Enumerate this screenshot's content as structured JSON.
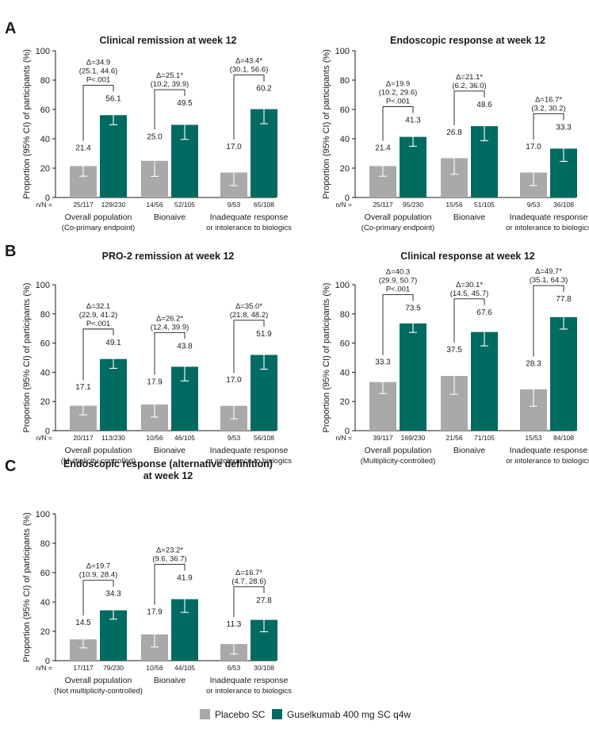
{
  "colors": {
    "placebo": "#aaa9a9",
    "guselkumab": "#006b61"
  },
  "legend": [
    {
      "label": "Placebo SC",
      "color_key": "placebo"
    },
    {
      "label": "Guselkumab 400 mg SC q4w",
      "color_key": "guselkumab"
    }
  ],
  "chart_data": [
    {
      "type": "bar",
      "panel": "A",
      "title": [
        "Clinical remission at week 12"
      ],
      "ylabel": "Proportion (95% CI) of participants (%)",
      "ylim": [
        0,
        100
      ],
      "yticks": [
        0,
        20,
        40,
        60,
        80,
        100
      ],
      "n_prefix": "n/N =",
      "groups": [
        {
          "label": [
            "Overall population",
            "(Co-primary endpoint)"
          ],
          "bars": [
            {
              "series": "placebo",
              "value": 21.4,
              "ci": [
                14.5,
                28.9
              ],
              "n": "25/117"
            },
            {
              "series": "guselkumab",
              "value": 56.1,
              "ci": [
                49.6,
                62.4
              ],
              "n": "129/230"
            }
          ],
          "annotation": [
            "Δ=34.9",
            "(25.1, 44.6)",
            "P<.001"
          ]
        },
        {
          "label": [
            "Bionaive"
          ],
          "bars": [
            {
              "series": "placebo",
              "value": 25.0,
              "ci": [
                14.4,
                36.6
              ],
              "n": "14/56"
            },
            {
              "series": "guselkumab",
              "value": 49.5,
              "ci": [
                39.6,
                59.4
              ],
              "n": "52/105"
            }
          ],
          "annotation": [
            "Δ=25.1*",
            "(10.2, 39.9)"
          ]
        },
        {
          "label": [
            "Inadequate response",
            "or intolerance to biologics"
          ],
          "bars": [
            {
              "series": "placebo",
              "value": 17.0,
              "ci": [
                8.1,
                29.8
              ],
              "n": "9/53"
            },
            {
              "series": "guselkumab",
              "value": 60.2,
              "ci": [
                50.3,
                69.4
              ],
              "n": "65/108"
            }
          ],
          "annotation": [
            "Δ=43.4*",
            "(30.1, 56.6)"
          ]
        }
      ]
    },
    {
      "type": "bar",
      "panel": "",
      "title": [
        "Endoscopic response at week 12"
      ],
      "ylabel": "Proportion (95% CI) of participants (%)",
      "ylim": [
        0,
        100
      ],
      "yticks": [
        0,
        20,
        40,
        60,
        80,
        100
      ],
      "n_prefix": "n/N =",
      "groups": [
        {
          "label": [
            "Overall population",
            "(Co-primary endpoint)"
          ],
          "bars": [
            {
              "series": "placebo",
              "value": 21.4,
              "ci": [
                14.5,
                28.9
              ],
              "n": "25/117"
            },
            {
              "series": "guselkumab",
              "value": 41.3,
              "ci": [
                34.9,
                47.9
              ],
              "n": "95/230"
            }
          ],
          "annotation": [
            "Δ=19.9",
            "(10.2, 29.6)",
            "P<.001"
          ]
        },
        {
          "label": [
            "Bionaive"
          ],
          "bars": [
            {
              "series": "placebo",
              "value": 26.8,
              "ci": [
                15.8,
                39.4
              ],
              "n": "15/56"
            },
            {
              "series": "guselkumab",
              "value": 48.6,
              "ci": [
                38.7,
                58.5
              ],
              "n": "51/105"
            }
          ],
          "annotation": [
            "Δ=21.1*",
            "(6.2, 36.0)"
          ]
        },
        {
          "label": [
            "Inadequate response",
            "or intolerance to biologics"
          ],
          "bars": [
            {
              "series": "placebo",
              "value": 17.0,
              "ci": [
                8.1,
                29.8
              ],
              "n": "9/53"
            },
            {
              "series": "guselkumab",
              "value": 33.3,
              "ci": [
                24.6,
                43.0
              ],
              "n": "36/108"
            }
          ],
          "annotation": [
            "Δ=16.7*",
            "(3.2, 30.2)"
          ]
        }
      ]
    },
    {
      "type": "bar",
      "panel": "B",
      "title": [
        "PRO-2 remission at week 12"
      ],
      "ylabel": "Proportion (95% CI) of participants (%)",
      "ylim": [
        0,
        100
      ],
      "yticks": [
        0,
        20,
        40,
        60,
        80,
        100
      ],
      "n_prefix": "n/N =",
      "groups": [
        {
          "label": [
            "Overall population",
            "(Multiplicity-controlled)"
          ],
          "bars": [
            {
              "series": "placebo",
              "value": 17.1,
              "ci": [
                10.8,
                24.9
              ],
              "n": "20/117"
            },
            {
              "series": "guselkumab",
              "value": 49.1,
              "ci": [
                42.7,
                55.5
              ],
              "n": "113/230"
            }
          ],
          "annotation": [
            "Δ=32.1",
            "(22.9, 41.2)",
            "P<.001"
          ]
        },
        {
          "label": [
            "Bionaive"
          ],
          "bars": [
            {
              "series": "placebo",
              "value": 17.9,
              "ci": [
                9.3,
                28.4
              ],
              "n": "10/56"
            },
            {
              "series": "guselkumab",
              "value": 43.8,
              "ci": [
                34.1,
                53.1
              ],
              "n": "46/105"
            }
          ],
          "annotation": [
            "Δ=26.2*",
            "(12.4, 39.9)"
          ]
        },
        {
          "label": [
            "Inadequate response",
            "or intolerance to biologics"
          ],
          "bars": [
            {
              "series": "placebo",
              "value": 17.0,
              "ci": [
                8.1,
                29.8
              ],
              "n": "9/53"
            },
            {
              "series": "guselkumab",
              "value": 51.9,
              "ci": [
                42.1,
                61.5
              ],
              "n": "56/108"
            }
          ],
          "annotation": [
            "Δ=35.0*",
            "(21.8, 48.2)"
          ]
        }
      ]
    },
    {
      "type": "bar",
      "panel": "",
      "title": [
        "Clinical response at week 12"
      ],
      "ylabel": "Proportion (95% CI) of participants (%)",
      "ylim": [
        0,
        100
      ],
      "yticks": [
        0,
        20,
        40,
        60,
        80,
        100
      ],
      "n_prefix": "n/N =",
      "groups": [
        {
          "label": [
            "Overall population",
            "(Multiplicity-controlled)"
          ],
          "bars": [
            {
              "series": "placebo",
              "value": 33.3,
              "ci": [
                25.4,
                42.0
              ],
              "n": "39/117"
            },
            {
              "series": "guselkumab",
              "value": 73.5,
              "ci": [
                67.3,
                79.1
              ],
              "n": "169/230"
            }
          ],
          "annotation": [
            "Δ=40.3",
            "(29.9, 50.7)",
            "P<.001"
          ]
        },
        {
          "label": [
            "Bionaive"
          ],
          "bars": [
            {
              "series": "placebo",
              "value": 37.5,
              "ci": [
                24.9,
                50.6
              ],
              "n": "21/56"
            },
            {
              "series": "guselkumab",
              "value": 67.6,
              "ci": [
                58.1,
                76.2
              ],
              "n": "71/105"
            }
          ],
          "annotation": [
            "Δ=30.1*",
            "(14.5, 45.7)"
          ]
        },
        {
          "label": [
            "Inadequate response",
            "or intolerance to biologics"
          ],
          "bars": [
            {
              "series": "placebo",
              "value": 28.3,
              "ci": [
                16.7,
                41.0
              ],
              "n": "15/53"
            },
            {
              "series": "guselkumab",
              "value": 77.8,
              "ci": [
                69.6,
                85.3
              ],
              "n": "84/108"
            }
          ],
          "annotation": [
            "Δ=49.7*",
            "(35.1, 64.3)"
          ]
        }
      ]
    },
    {
      "type": "bar",
      "panel": "C",
      "title": [
        "Endoscopic response (alternative definition)",
        "at week 12"
      ],
      "ylabel": "Proportion (95% CI) of participants (%)",
      "ylim": [
        0,
        100
      ],
      "yticks": [
        0,
        20,
        40,
        60,
        80,
        100
      ],
      "n_prefix": "n/N =",
      "groups": [
        {
          "label": [
            "Overall population",
            "(Not multiplicity-controlled)"
          ],
          "bars": [
            {
              "series": "placebo",
              "value": 14.5,
              "ci": [
                8.7,
                21.0
              ],
              "n": "17/117"
            },
            {
              "series": "guselkumab",
              "value": 34.3,
              "ci": [
                28.3,
                40.7
              ],
              "n": "79/230"
            }
          ],
          "annotation": [
            "Δ=19.7",
            "(10.9, 28.4)"
          ]
        },
        {
          "label": [
            "Bionaive"
          ],
          "bars": [
            {
              "series": "placebo",
              "value": 17.9,
              "ci": [
                9.3,
                28.4
              ],
              "n": "10/56"
            },
            {
              "series": "guselkumab",
              "value": 41.9,
              "ci": [
                32.9,
                51.6
              ],
              "n": "44/105"
            }
          ],
          "annotation": [
            "Δ=23.2*",
            "(9.6, 36.7)"
          ]
        },
        {
          "label": [
            "Inadequate response",
            "or intolerance to biologics"
          ],
          "bars": [
            {
              "series": "placebo",
              "value": 11.3,
              "ci": [
                4.5,
                20.0
              ],
              "n": "6/53"
            },
            {
              "series": "guselkumab",
              "value": 27.8,
              "ci": [
                19.7,
                36.3
              ],
              "n": "30/108"
            }
          ],
          "annotation": [
            "Δ=16.7*",
            "(4.7, 28.6)"
          ]
        }
      ]
    }
  ]
}
